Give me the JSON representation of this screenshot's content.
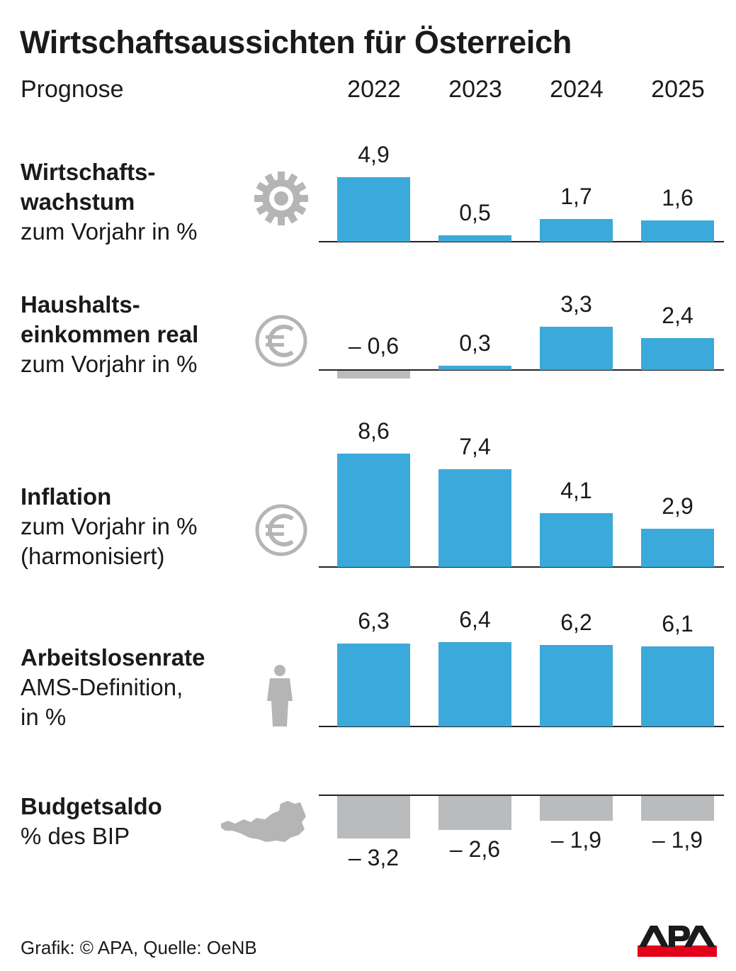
{
  "title": "Wirtschaftsaussichten für Österreich",
  "subtitle": "Prognose",
  "footer": "Grafik: © APA, Quelle: OeNB",
  "logo_text": "APA",
  "colors": {
    "positive": "#3ba9d9",
    "negative": "#b9bbbd",
    "icon": "#b5b5b5",
    "logo_red": "#e3001b"
  },
  "chart_data": {
    "type": "bar",
    "categories": [
      "2022",
      "2023",
      "2024",
      "2025"
    ],
    "panels": [
      {
        "title": "Wirtschafts-\nwachstum",
        "subtitle": "zum Vorjahr in %",
        "icon": "gear-icon",
        "values": [
          4.9,
          0.5,
          1.7,
          1.6
        ],
        "labels": [
          "4,9",
          "0,5",
          "1,7",
          "1,6"
        ]
      },
      {
        "title": "Haushalts-\neinkommen real",
        "subtitle": "zum Vorjahr in %",
        "icon": "euro-icon",
        "values": [
          -0.6,
          0.3,
          3.3,
          2.4
        ],
        "labels": [
          "– 0,6",
          "0,3",
          "3,3",
          "2,4"
        ]
      },
      {
        "title": "Inflation",
        "subtitle": "zum Vorjahr in %\n(harmonisiert)",
        "icon": "euro-icon",
        "values": [
          8.6,
          7.4,
          4.1,
          2.9
        ],
        "labels": [
          "8,6",
          "7,4",
          "4,1",
          "2,9"
        ]
      },
      {
        "title": "Arbeitslosenrate",
        "subtitle": "AMS-Definition,\nin %",
        "icon": "person-icon",
        "values": [
          6.3,
          6.4,
          6.2,
          6.1
        ],
        "labels": [
          "6,3",
          "6,4",
          "6,2",
          "6,1"
        ]
      },
      {
        "title": "Budgetsaldo",
        "subtitle": "% des BIP",
        "icon": "austria-map-icon",
        "values": [
          -3.2,
          -2.6,
          -1.9,
          -1.9
        ],
        "labels": [
          "– 3,2",
          "– 2,6",
          "– 1,9",
          "– 1,9"
        ]
      }
    ]
  }
}
